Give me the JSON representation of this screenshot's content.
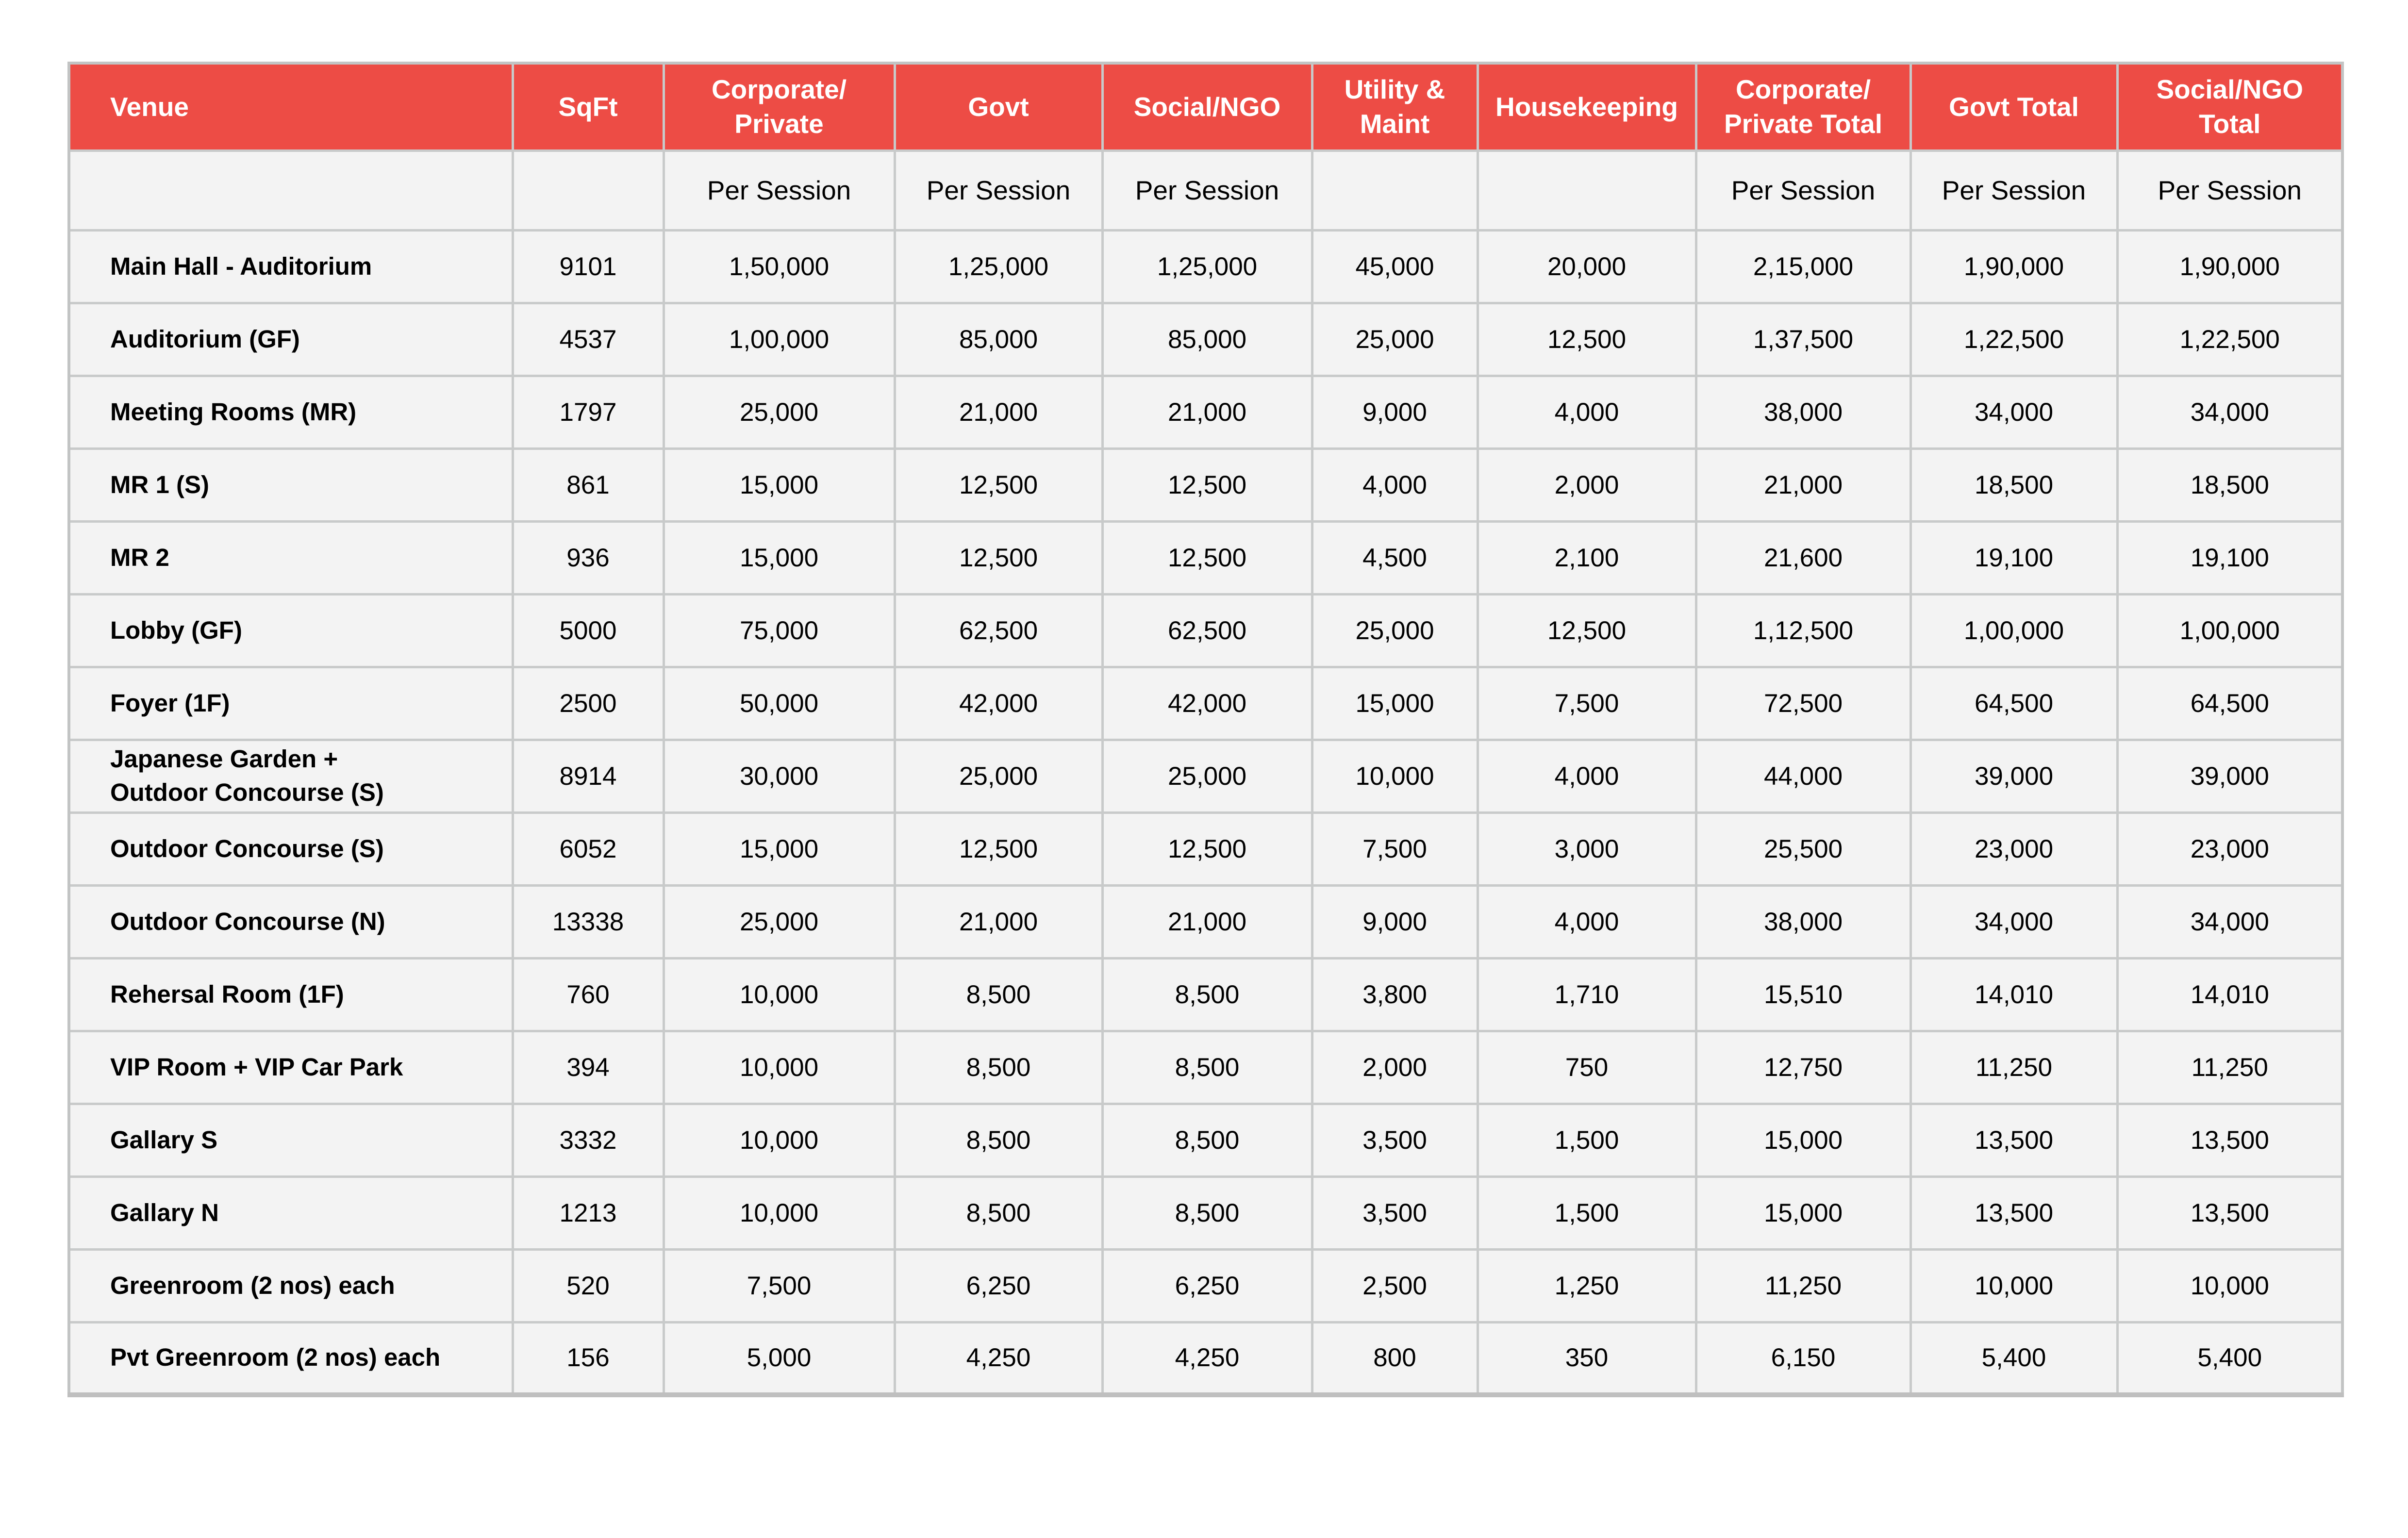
{
  "table": {
    "accent_color": "#ED4C45",
    "header_text_color": "#FFFFFF",
    "cell_background": "#F3F3F3",
    "border_color": "#C8CACA",
    "columns": [
      {
        "label": "Venue",
        "sub": ""
      },
      {
        "label": "SqFt",
        "sub": ""
      },
      {
        "label": "Corporate/\nPrivate",
        "sub": "Per Session"
      },
      {
        "label": "Govt",
        "sub": "Per Session"
      },
      {
        "label": "Social/NGO",
        "sub": "Per Session"
      },
      {
        "label": "Utility &\nMaint",
        "sub": ""
      },
      {
        "label": "Housekeeping",
        "sub": ""
      },
      {
        "label": "Corporate/\nPrivate Total",
        "sub": "Per Session"
      },
      {
        "label": "Govt Total",
        "sub": "Per Session"
      },
      {
        "label": "Social/NGO\nTotal",
        "sub": "Per Session"
      }
    ],
    "rows": [
      [
        "Main Hall - Auditorium",
        "9101",
        "1,50,000",
        "1,25,000",
        "1,25,000",
        "45,000",
        "20,000",
        "2,15,000",
        "1,90,000",
        "1,90,000"
      ],
      [
        "Auditorium (GF)",
        "4537",
        "1,00,000",
        "85,000",
        "85,000",
        "25,000",
        "12,500",
        "1,37,500",
        "1,22,500",
        "1,22,500"
      ],
      [
        "Meeting Rooms (MR)",
        "1797",
        "25,000",
        "21,000",
        "21,000",
        "9,000",
        "4,000",
        "38,000",
        "34,000",
        "34,000"
      ],
      [
        "MR 1 (S)",
        "861",
        "15,000",
        "12,500",
        "12,500",
        "4,000",
        "2,000",
        "21,000",
        "18,500",
        "18,500"
      ],
      [
        "MR 2",
        "936",
        "15,000",
        "12,500",
        "12,500",
        "4,500",
        "2,100",
        "21,600",
        "19,100",
        "19,100"
      ],
      [
        "Lobby (GF)",
        "5000",
        "75,000",
        "62,500",
        "62,500",
        "25,000",
        "12,500",
        "1,12,500",
        "1,00,000",
        "1,00,000"
      ],
      [
        "Foyer (1F)",
        "2500",
        "50,000",
        "42,000",
        "42,000",
        "15,000",
        "7,500",
        "72,500",
        "64,500",
        "64,500"
      ],
      [
        "Japanese Garden +\nOutdoor Concourse (S)",
        "8914",
        "30,000",
        "25,000",
        "25,000",
        "10,000",
        "4,000",
        "44,000",
        "39,000",
        "39,000"
      ],
      [
        "Outdoor Concourse (S)",
        "6052",
        "15,000",
        "12,500",
        "12,500",
        "7,500",
        "3,000",
        "25,500",
        "23,000",
        "23,000"
      ],
      [
        "Outdoor Concourse (N)",
        "13338",
        "25,000",
        "21,000",
        "21,000",
        "9,000",
        "4,000",
        "38,000",
        "34,000",
        "34,000"
      ],
      [
        "Rehersal Room (1F)",
        "760",
        "10,000",
        "8,500",
        "8,500",
        "3,800",
        "1,710",
        "15,510",
        "14,010",
        "14,010"
      ],
      [
        "VIP Room + VIP Car Park",
        "394",
        "10,000",
        "8,500",
        "8,500",
        "2,000",
        "750",
        "12,750",
        "11,250",
        "11,250"
      ],
      [
        "Gallary S",
        "3332",
        "10,000",
        "8,500",
        "8,500",
        "3,500",
        "1,500",
        "15,000",
        "13,500",
        "13,500"
      ],
      [
        "Gallary N",
        "1213",
        "10,000",
        "8,500",
        "8,500",
        "3,500",
        "1,500",
        "15,000",
        "13,500",
        "13,500"
      ],
      [
        "Greenroom (2 nos) each",
        "520",
        "7,500",
        "6,250",
        "6,250",
        "2,500",
        "1,250",
        "11,250",
        "10,000",
        "10,000"
      ],
      [
        "Pvt Greenroom (2 nos) each",
        "156",
        "5,000",
        "4,250",
        "4,250",
        "800",
        "350",
        "6,150",
        "5,400",
        "5,400"
      ]
    ]
  }
}
